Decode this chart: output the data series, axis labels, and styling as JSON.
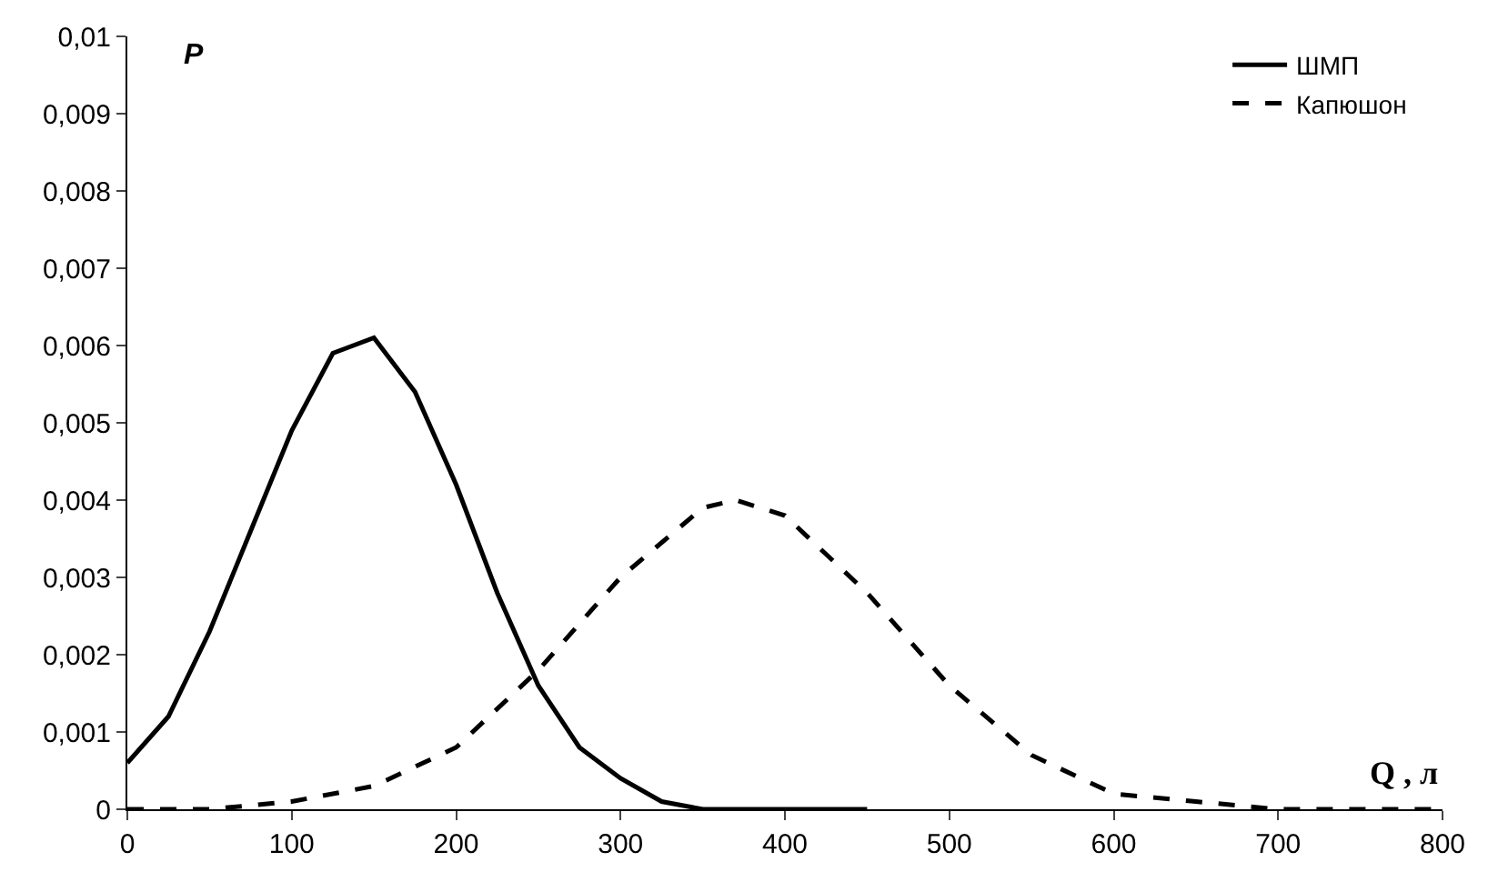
{
  "chart_data": {
    "type": "line",
    "xlabel": "Q , л",
    "ylabel": "P",
    "x": [
      0,
      25,
      50,
      75,
      100,
      125,
      150,
      175,
      200,
      225,
      250,
      275,
      300,
      325,
      350,
      375,
      400,
      450
    ],
    "series": [
      {
        "name": "ШМП",
        "color": "#000000",
        "line_style": "solid",
        "values": [
          0.0006,
          0.0012,
          0.0023,
          0.0036,
          0.0049,
          0.0059,
          0.0061,
          0.0054,
          0.0042,
          0.0028,
          0.0016,
          0.0008,
          0.0004,
          0.0001,
          0.0,
          0.0,
          0.0,
          0.0
        ]
      },
      {
        "name": "Капюшон",
        "color": "#000000",
        "line_style": "dashed",
        "x": [
          0,
          50,
          100,
          150,
          200,
          250,
          300,
          350,
          370,
          400,
          450,
          500,
          550,
          600,
          650,
          700,
          750,
          800
        ],
        "values": [
          0.0,
          0.0,
          0.0001,
          0.0003,
          0.0008,
          0.0018,
          0.003,
          0.0039,
          0.004,
          0.0038,
          0.0028,
          0.0016,
          0.0007,
          0.0002,
          0.0001,
          0.0,
          0.0,
          0.0
        ]
      }
    ],
    "xlim": [
      0,
      800
    ],
    "ylim": [
      0,
      0.01
    ],
    "xticks": [
      0,
      100,
      200,
      300,
      400,
      500,
      600,
      700,
      800
    ],
    "yticks": [
      0,
      {
        "value": 0.001,
        "label": "0,001"
      },
      {
        "value": 0.002,
        "label": "0,002"
      },
      {
        "value": 0.003,
        "label": "0,003"
      },
      {
        "value": 0.004,
        "label": "0,004"
      },
      {
        "value": 0.005,
        "label": "0,005"
      },
      {
        "value": 0.006,
        "label": "0,006"
      },
      {
        "value": 0.007,
        "label": "0,007"
      },
      {
        "value": 0.008,
        "label": "0,008"
      },
      {
        "value": 0.009,
        "label": "0,009"
      },
      {
        "value": 0.01,
        "label": "0,01"
      }
    ],
    "legend": "top right"
  }
}
